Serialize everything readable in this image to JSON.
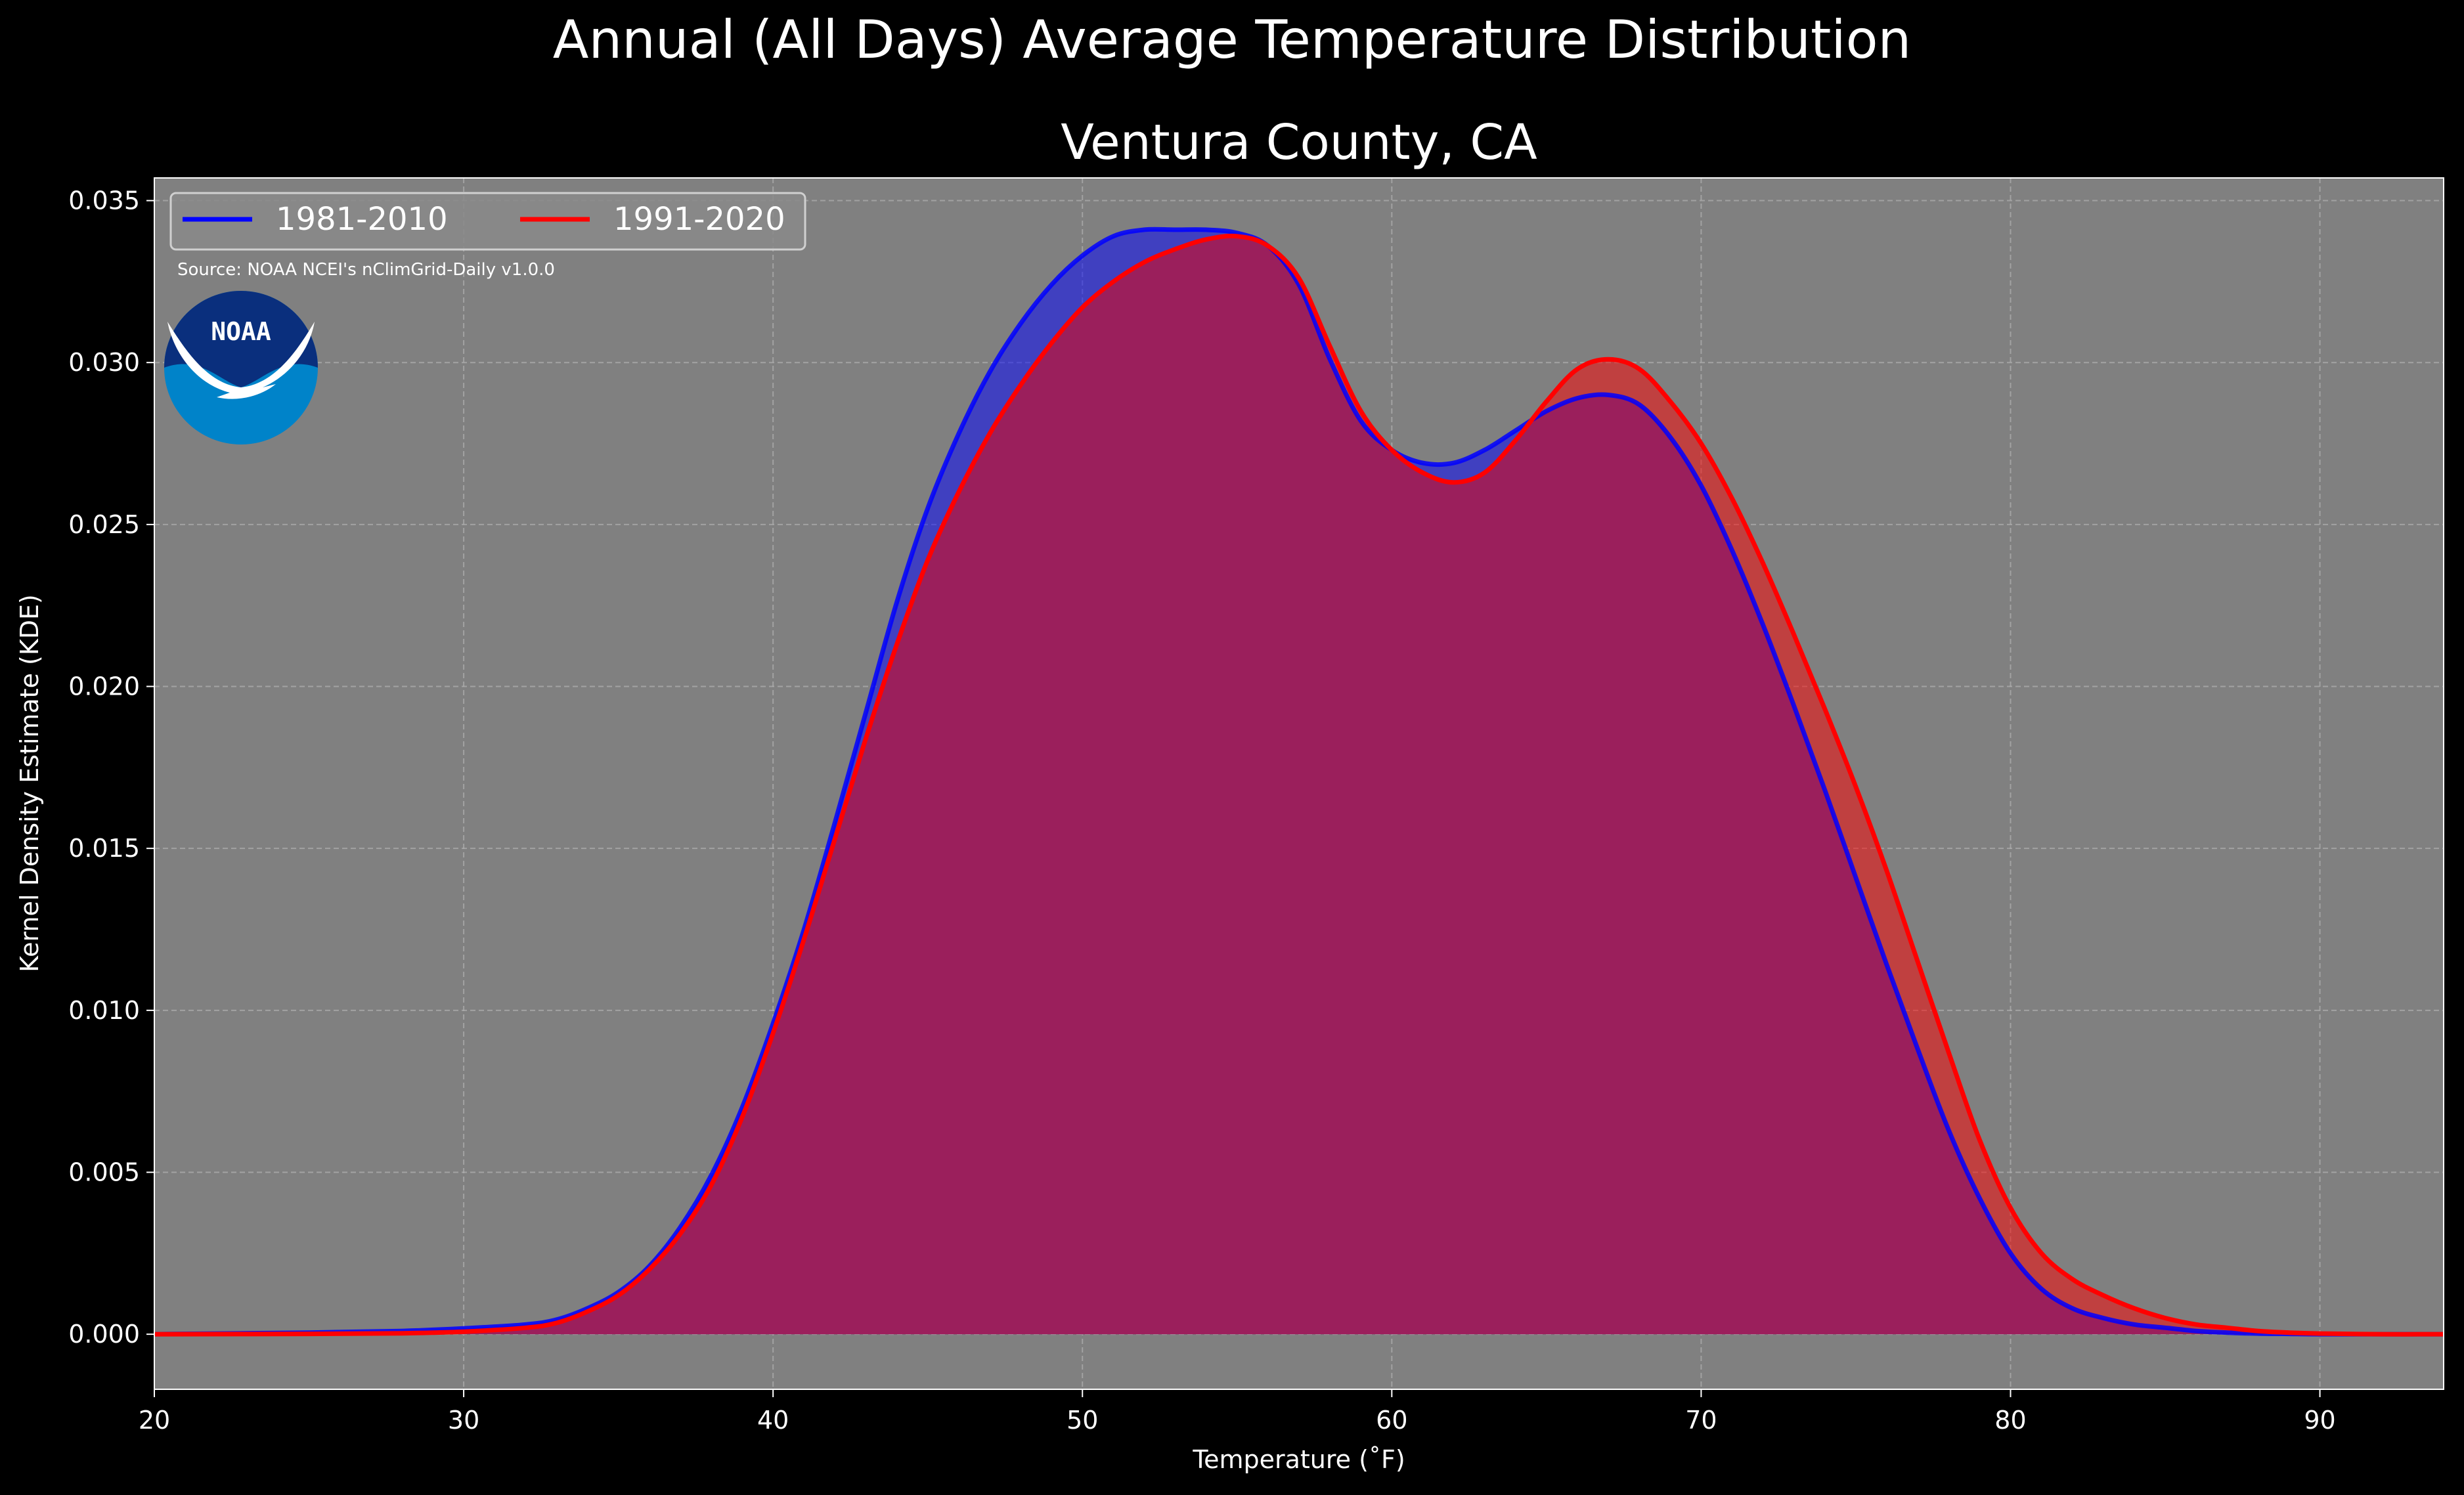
{
  "colors": {
    "figure_bg": "#000000",
    "axes_bg": "#808080",
    "grid": "#b0b0b0",
    "text": "#ffffff",
    "series_1981_2010": "#0000ff",
    "series_1991_2020": "#ff0000",
    "overlap_fill": "#9b1f5c",
    "noaa_dark_blue": "#0a2f7d",
    "noaa_light_blue": "#0083c9"
  },
  "logo": {
    "icon": "noaa-logo",
    "text": "NOAA"
  },
  "chart_data": {
    "type": "area",
    "suptitle": "Annual (All Days) Average Temperature Distribution",
    "title": "Ventura County, CA",
    "xlabel": "Temperature ($^\\circ$F)",
    "xlabel_display": "Temperature (˚F)",
    "ylabel": "Kernel Density Estimate (KDE)",
    "xlim": [
      20,
      94
    ],
    "ylim": [
      -0.0017,
      0.0357
    ],
    "xticks": [
      20,
      30,
      40,
      50,
      60,
      70,
      80,
      90
    ],
    "xtick_labels": [
      "20",
      "30",
      "40",
      "50",
      "60",
      "70",
      "80",
      "90"
    ],
    "yticks": [
      0.0,
      0.005,
      0.01,
      0.015,
      0.02,
      0.025,
      0.03,
      0.035
    ],
    "ytick_labels": [
      "0.000",
      "0.005",
      "0.010",
      "0.015",
      "0.020",
      "0.025",
      "0.030",
      "0.035"
    ],
    "grid": true,
    "legend_position": "top-left",
    "annotation": "Source: NOAA NCEI's nClimGrid-Daily v1.0.0",
    "series": [
      {
        "name": "1981-2010",
        "color": "#0000ff",
        "x": [
          20,
          25,
          28,
          30,
          32,
          33,
          34,
          35,
          36,
          37,
          38,
          39,
          40,
          41,
          42,
          43,
          44,
          45,
          46,
          47,
          48,
          49,
          50,
          51,
          52,
          53,
          54,
          55,
          56,
          57,
          58,
          59,
          60,
          61,
          62,
          63,
          64,
          65,
          66,
          67,
          68,
          69,
          70,
          71,
          72,
          73,
          74,
          75,
          76,
          77,
          78,
          79,
          80,
          81,
          82,
          83,
          84,
          85,
          86,
          87,
          88,
          89,
          90,
          92,
          94
        ],
        "y": [
          0.0,
          5e-05,
          0.0001,
          0.00018,
          0.0003,
          0.00045,
          0.0008,
          0.0013,
          0.0021,
          0.0033,
          0.0049,
          0.007,
          0.0096,
          0.0125,
          0.0158,
          0.0192,
          0.0226,
          0.0255,
          0.0278,
          0.0297,
          0.0312,
          0.0324,
          0.0333,
          0.0339,
          0.0341,
          0.0341,
          0.0341,
          0.034,
          0.0336,
          0.0324,
          0.0301,
          0.0282,
          0.0273,
          0.0269,
          0.0269,
          0.0273,
          0.0279,
          0.0285,
          0.0289,
          0.029,
          0.0287,
          0.0277,
          0.0262,
          0.0242,
          0.0219,
          0.0194,
          0.0168,
          0.0141,
          0.0114,
          0.0088,
          0.0063,
          0.0042,
          0.0025,
          0.0014,
          0.0008,
          0.0005,
          0.0003,
          0.0002,
          0.0001,
          5e-05,
          2e-05,
          1e-05,
          0.0,
          0.0,
          0.0
        ]
      },
      {
        "name": "1991-2020",
        "color": "#ff0000",
        "x": [
          20,
          25,
          28,
          30,
          32,
          33,
          34,
          35,
          36,
          37,
          38,
          39,
          40,
          41,
          42,
          43,
          44,
          45,
          46,
          47,
          48,
          49,
          50,
          51,
          52,
          53,
          54,
          55,
          56,
          57,
          58,
          59,
          60,
          61,
          62,
          63,
          64,
          65,
          66,
          67,
          68,
          69,
          70,
          71,
          72,
          73,
          74,
          75,
          76,
          77,
          78,
          79,
          80,
          81,
          82,
          83,
          84,
          85,
          86,
          87,
          88,
          89,
          90,
          92,
          94
        ],
        "y": [
          0.0,
          1e-05,
          3e-05,
          8e-05,
          0.0002,
          0.00035,
          0.0007,
          0.0012,
          0.002,
          0.0031,
          0.0046,
          0.0067,
          0.0093,
          0.0122,
          0.0153,
          0.0184,
          0.0213,
          0.0239,
          0.026,
          0.0278,
          0.0293,
          0.0306,
          0.0317,
          0.0325,
          0.0331,
          0.0335,
          0.0338,
          0.0339,
          0.0336,
          0.0326,
          0.0305,
          0.0285,
          0.0273,
          0.0266,
          0.0263,
          0.0266,
          0.0276,
          0.0288,
          0.0298,
          0.0301,
          0.0298,
          0.0288,
          0.0275,
          0.0258,
          0.0238,
          0.0216,
          0.0193,
          0.0169,
          0.0143,
          0.0115,
          0.0087,
          0.006,
          0.0039,
          0.0025,
          0.0017,
          0.0012,
          0.0008,
          0.0005,
          0.0003,
          0.0002,
          0.0001,
          5e-05,
          2e-05,
          0.0,
          0.0
        ]
      }
    ]
  }
}
